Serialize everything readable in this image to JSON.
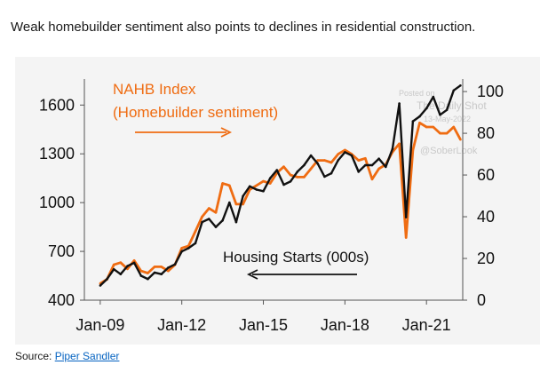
{
  "caption": "Weak homebuilder sentiment also points to declines in residential construction.",
  "source": {
    "label": "Source:",
    "link_text": "Piper Sandler"
  },
  "watermark": {
    "line1": "Posted on",
    "line2": "The Daily Shot",
    "line3": "13-May-2022",
    "line4": "@SoberLook"
  },
  "colors": {
    "housing_starts": "#111111",
    "nahb": "#ef6c12",
    "axis": "#555555",
    "panel_bg": "#f4f4f4"
  },
  "chart_data": {
    "type": "line",
    "title": "",
    "xlabel": "",
    "x_ticks": [
      "Jan-09",
      "Jan-12",
      "Jan-15",
      "Jan-18",
      "Jan-21"
    ],
    "xlim": [
      "2008-06",
      "2022-05"
    ],
    "y_left": {
      "label": "Housing Starts (000s)",
      "ticks": [
        400,
        700,
        1000,
        1300,
        1600
      ],
      "lim": [
        400,
        1760
      ]
    },
    "y_right": {
      "label": "NAHB Index",
      "ticks": [
        0,
        20,
        40,
        60,
        80,
        100
      ],
      "lim": [
        0,
        106
      ]
    },
    "annotations": [
      {
        "text_line1": "NAHB Index",
        "text_line2": "(Homebuilder sentiment)",
        "arrow": "right",
        "color": "#ef6c12"
      },
      {
        "text_line1": "Housing Starts (000s)",
        "arrow": "left",
        "color": "#111111"
      }
    ],
    "series": [
      {
        "name": "Housing Starts (000s)",
        "axis": "left",
        "color": "#111111",
        "x": [
          "2009-01",
          "2009-04",
          "2009-07",
          "2009-10",
          "2010-01",
          "2010-04",
          "2010-07",
          "2010-10",
          "2011-01",
          "2011-04",
          "2011-07",
          "2011-10",
          "2012-01",
          "2012-04",
          "2012-07",
          "2012-10",
          "2013-01",
          "2013-04",
          "2013-07",
          "2013-10",
          "2014-01",
          "2014-04",
          "2014-07",
          "2014-10",
          "2015-01",
          "2015-04",
          "2015-07",
          "2015-10",
          "2016-01",
          "2016-04",
          "2016-07",
          "2016-10",
          "2017-01",
          "2017-04",
          "2017-07",
          "2017-10",
          "2018-01",
          "2018-04",
          "2018-07",
          "2018-10",
          "2019-01",
          "2019-04",
          "2019-07",
          "2019-10",
          "2020-01",
          "2020-04",
          "2020-07",
          "2020-10",
          "2021-01",
          "2021-04",
          "2021-07",
          "2021-10",
          "2022-01",
          "2022-04"
        ],
        "values": [
          490,
          530,
          590,
          560,
          610,
          630,
          550,
          530,
          570,
          560,
          600,
          620,
          700,
          720,
          750,
          880,
          900,
          850,
          890,
          1000,
          880,
          1040,
          1100,
          1080,
          1070,
          1150,
          1200,
          1110,
          1130,
          1190,
          1230,
          1290,
          1240,
          1160,
          1180,
          1260,
          1310,
          1290,
          1190,
          1230,
          1230,
          1270,
          1220,
          1330,
          1610,
          910,
          1500,
          1530,
          1580,
          1650,
          1540,
          1570,
          1690,
          1720
        ]
      },
      {
        "name": "NAHB Index",
        "axis": "right",
        "color": "#ef6c12",
        "x": [
          "2009-01",
          "2009-04",
          "2009-07",
          "2009-10",
          "2010-01",
          "2010-04",
          "2010-07",
          "2010-10",
          "2011-01",
          "2011-04",
          "2011-07",
          "2011-10",
          "2012-01",
          "2012-04",
          "2012-07",
          "2012-10",
          "2013-01",
          "2013-04",
          "2013-07",
          "2013-10",
          "2014-01",
          "2014-04",
          "2014-07",
          "2014-10",
          "2015-01",
          "2015-04",
          "2015-07",
          "2015-10",
          "2016-01",
          "2016-04",
          "2016-07",
          "2016-10",
          "2017-01",
          "2017-04",
          "2017-07",
          "2017-10",
          "2018-01",
          "2018-04",
          "2018-07",
          "2018-10",
          "2019-01",
          "2019-04",
          "2019-07",
          "2019-10",
          "2020-01",
          "2020-04",
          "2020-07",
          "2020-10",
          "2021-01",
          "2021-04",
          "2021-07",
          "2021-10",
          "2022-01",
          "2022-04"
        ],
        "values": [
          8,
          10,
          17,
          18,
          15,
          19,
          14,
          13,
          16,
          16,
          14,
          17,
          25,
          26,
          33,
          40,
          44,
          42,
          56,
          55,
          46,
          46,
          53,
          55,
          57,
          56,
          61,
          64,
          60,
          59,
          59,
          63,
          67,
          67,
          66,
          70,
          72,
          70,
          67,
          68,
          58,
          63,
          65,
          71,
          75,
          30,
          72,
          85,
          83,
          83,
          80,
          80,
          83,
          77
        ]
      }
    ]
  }
}
